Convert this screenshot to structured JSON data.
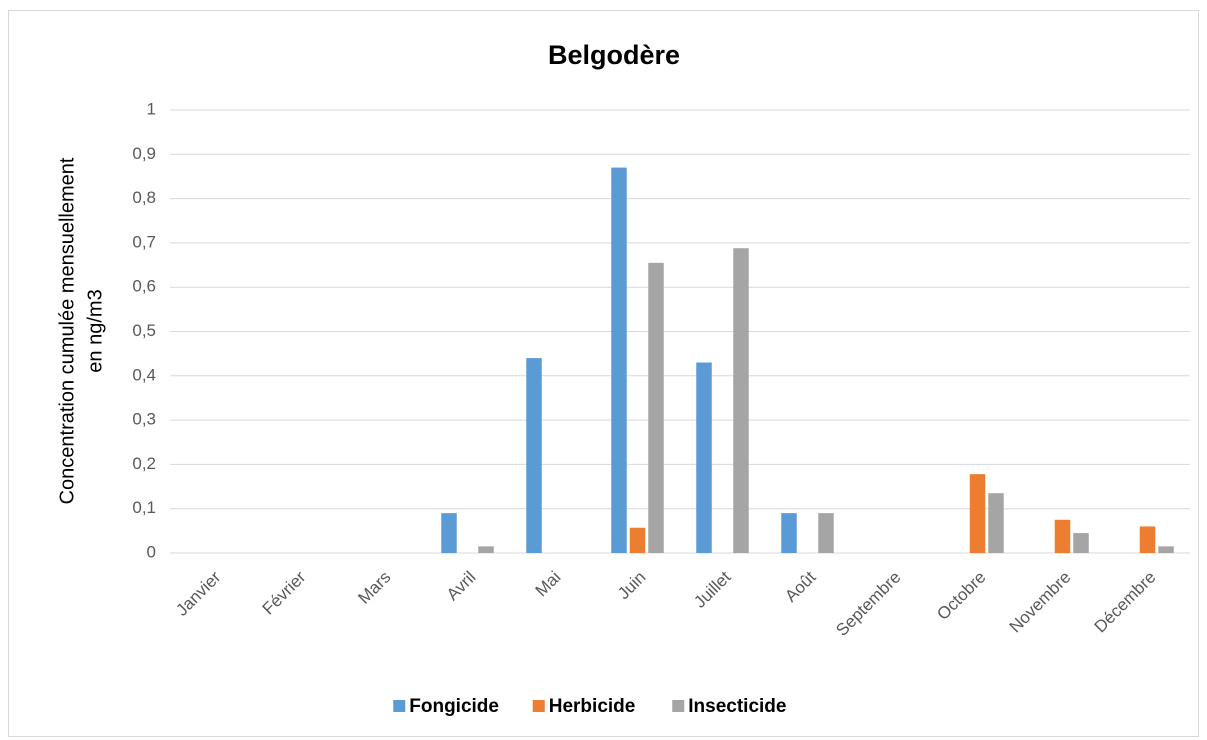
{
  "chart_data": {
    "type": "bar",
    "title": "Belgodère",
    "ylabel": [
      "Concentration cumulée mensuellement",
      "en ng/m3"
    ],
    "categories": [
      "Janvier",
      "Février",
      "Mars",
      "Avril",
      "Mai",
      "Juin",
      "Juillet",
      "Août",
      "Septembre",
      "Octobre",
      "Novembre",
      "Décembre"
    ],
    "series": [
      {
        "name": "Fongicide",
        "color": "#5b9bd5",
        "values": [
          0,
          0,
          0,
          0.09,
          0.44,
          0.87,
          0.43,
          0.09,
          0,
          0,
          0,
          0
        ]
      },
      {
        "name": "Herbicide",
        "color": "#ed7d31",
        "values": [
          0,
          0,
          0,
          0,
          0,
          0.057,
          0,
          0,
          0,
          0.178,
          0.075,
          0.06
        ]
      },
      {
        "name": "Insecticide",
        "color": "#a5a5a5",
        "values": [
          0,
          0,
          0,
          0.015,
          0,
          0.655,
          0.688,
          0.09,
          0,
          0.135,
          0.045,
          0.015
        ]
      }
    ],
    "ylim": [
      0,
      1
    ],
    "yticks": [
      0,
      {
        "value": 0.1,
        "label": "0,1"
      },
      {
        "value": 0.2,
        "label": "0,2"
      },
      {
        "value": 0.3,
        "label": "0,3"
      },
      {
        "value": 0.4,
        "label": "0,4"
      },
      {
        "value": 0.5,
        "label": "0,5"
      },
      {
        "value": 0.6,
        "label": "0,6"
      },
      {
        "value": 0.7,
        "label": "0,7"
      },
      {
        "value": 0.8,
        "label": "0,8"
      },
      {
        "value": 0.9,
        "label": "0,9"
      },
      1
    ],
    "grid": true,
    "legend": "bottom"
  }
}
